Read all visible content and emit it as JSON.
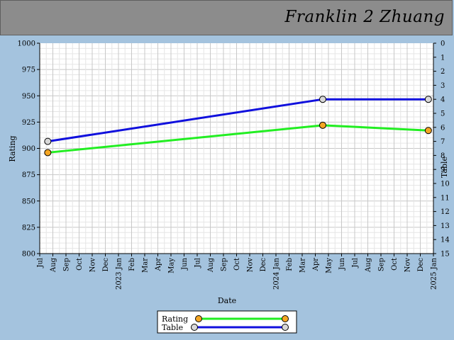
{
  "header": {
    "player_name": "Franklin 2 Zhuang"
  },
  "colors": {
    "background": "#a4c3de",
    "header": "#8c8c8c",
    "rating": "#22ee22",
    "table": "#1010dd",
    "rating_marker": "#f5a623",
    "table_marker": "#d8d8d8"
  },
  "chart_data": {
    "type": "line",
    "title": "",
    "xlabel": "Date",
    "ylabel": "Rating",
    "y2label": "Table",
    "ylim": [
      800,
      1000
    ],
    "y2lim": [
      0,
      15
    ],
    "y2_inverted": true,
    "grid": true,
    "legend_position": "bottom-center",
    "x_ticks": [
      "Jul",
      "Aug",
      "Sep",
      "Oct",
      "Nov",
      "Dec",
      "2023 Jan",
      "Feb",
      "Mar",
      "Apr",
      "May",
      "Jun",
      "Jul",
      "Aug",
      "Sep",
      "Oct",
      "Nov",
      "Dec",
      "2024 Jan",
      "Feb",
      "Mar",
      "Apr",
      "May",
      "Jun",
      "Jul",
      "Aug",
      "Sep",
      "Oct",
      "Nov",
      "Dec",
      "2025 Jan"
    ],
    "y_ticks": [
      "800",
      "825",
      "850",
      "875",
      "900",
      "925",
      "950",
      "975",
      "1000"
    ],
    "y2_ticks": [
      "0",
      "1",
      "2",
      "3",
      "4",
      "5",
      "6",
      "7",
      "8",
      "9",
      "10",
      "11",
      "12",
      "13",
      "14",
      "15"
    ],
    "series": [
      {
        "name": "Rating",
        "axis": "left",
        "x": [
          "2022-07-20",
          "2024-04-18",
          "2024-12-20"
        ],
        "values": [
          896,
          922,
          917
        ]
      },
      {
        "name": "Table",
        "axis": "right",
        "x": [
          "2022-07-20",
          "2024-04-18",
          "2024-12-20"
        ],
        "values": [
          7,
          4,
          4
        ]
      }
    ]
  }
}
